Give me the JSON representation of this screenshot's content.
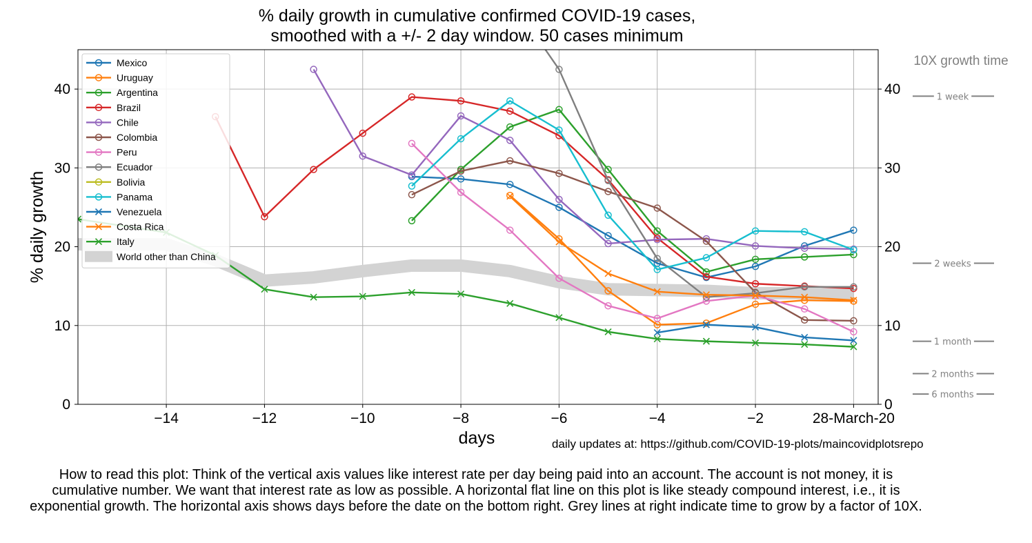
{
  "title_line1": "% daily growth in cumulative confirmed COVID-19 cases,",
  "title_line2": "smoothed with a +/- 2 day window. 50 cases minimum",
  "updates_text": "daily updates at: https://github.com/COVID-19-plots/maincovidplotsrepo",
  "footer_text": "How to read this plot: Think of the vertical axis values like interest rate per day being paid into an account. The account is not money, it is cumulative number. We want that interest rate as low as possible. A horizontal flat line on this plot is like steady compound interest, i.e., it is exponential growth. The horizontal axis shows days before the date on the bottom right. Grey lines at right indicate time to grow by a factor of 10X.",
  "chart_data": {
    "type": "line",
    "xlabel": "days",
    "ylabel": "% daily growth",
    "xlim": [
      -15.8,
      0.5
    ],
    "ylim": [
      0,
      45
    ],
    "x_ticks": [
      -14,
      -12,
      -10,
      -8,
      -6,
      -4,
      -2,
      0
    ],
    "x_tick_labels": [
      "−14",
      "−12",
      "−10",
      "−8",
      "−6",
      "−4",
      "−2",
      "28-March-20"
    ],
    "y_ticks": [
      0,
      10,
      20,
      30,
      40
    ],
    "y_tick_labels": [
      "0",
      "10",
      "20",
      "30",
      "40"
    ],
    "grid": true,
    "legend_position": "top-left",
    "right_axis_title": "10X growth time",
    "right_markers": [
      {
        "label": "1 week",
        "y": 39.1
      },
      {
        "label": "2 weeks",
        "y": 17.9
      },
      {
        "label": "1 month",
        "y": 8.0
      },
      {
        "label": "2 months",
        "y": 3.9
      },
      {
        "label": "6 months",
        "y": 1.3
      }
    ],
    "band": {
      "name": "World other than China",
      "color": "#d3d3d3",
      "points": [
        [
          -15.8,
          20.3
        ],
        [
          -14,
          20.3
        ],
        [
          -13,
          18.3
        ],
        [
          -12,
          15.7
        ],
        [
          -11,
          16.1
        ],
        [
          -10,
          16.9
        ],
        [
          -9,
          17.6
        ],
        [
          -8,
          17.6
        ],
        [
          -7,
          16.9
        ],
        [
          -6,
          15.5
        ],
        [
          -5,
          14.6
        ],
        [
          -4,
          14.5
        ],
        [
          -3,
          14.4
        ],
        [
          -2,
          14.1
        ],
        [
          -1,
          14.1
        ],
        [
          0,
          14.0
        ]
      ]
    },
    "series": [
      {
        "name": "Mexico",
        "color": "#1f77b4",
        "marker": "circle",
        "points": [
          [
            -9,
            28.9
          ],
          [
            -8,
            28.6
          ],
          [
            -7,
            27.9
          ],
          [
            -6,
            25.0
          ],
          [
            -5,
            21.4
          ],
          [
            -4,
            17.9
          ],
          [
            -3,
            16.1
          ],
          [
            -2,
            17.5
          ],
          [
            -1,
            20.1
          ],
          [
            0,
            22.1
          ]
        ]
      },
      {
        "name": "Uruguay",
        "color": "#ff7f0e",
        "marker": "circle",
        "points": [
          [
            -7,
            26.5
          ],
          [
            -6,
            21.0
          ],
          [
            -5,
            14.4
          ],
          [
            -4,
            10.1
          ],
          [
            -3,
            10.3
          ],
          [
            -2,
            12.7
          ],
          [
            -1,
            13.2
          ],
          [
            0,
            13.1
          ]
        ]
      },
      {
        "name": "Argentina",
        "color": "#2ca02c",
        "marker": "circle",
        "points": [
          [
            -9,
            23.3
          ],
          [
            -8,
            29.8
          ],
          [
            -7,
            35.2
          ],
          [
            -6,
            37.4
          ],
          [
            -5,
            29.8
          ],
          [
            -4,
            22.0
          ],
          [
            -3,
            16.8
          ],
          [
            -2,
            18.4
          ],
          [
            -1,
            18.7
          ],
          [
            0,
            19.0
          ]
        ]
      },
      {
        "name": "Brazil",
        "color": "#d62728",
        "marker": "circle",
        "points": [
          [
            -13,
            36.5
          ],
          [
            -12,
            23.8
          ],
          [
            -11,
            29.8
          ],
          [
            -10,
            34.4
          ],
          [
            -9,
            39.0
          ],
          [
            -8,
            38.5
          ],
          [
            -7,
            37.2
          ],
          [
            -6,
            34.1
          ],
          [
            -5,
            28.5
          ],
          [
            -4,
            21.1
          ],
          [
            -3,
            16.2
          ],
          [
            -2,
            15.3
          ],
          [
            -1,
            15.0
          ],
          [
            0,
            14.7
          ]
        ]
      },
      {
        "name": "Chile",
        "color": "#9467bd",
        "marker": "circle",
        "points": [
          [
            -11,
            42.5
          ],
          [
            -10,
            31.5
          ],
          [
            -9,
            29.1
          ],
          [
            -8,
            36.6
          ],
          [
            -7,
            33.5
          ],
          [
            -6,
            26.0
          ],
          [
            -5,
            20.4
          ],
          [
            -4,
            20.9
          ],
          [
            -3,
            21.0
          ],
          [
            -2,
            20.1
          ],
          [
            -1,
            19.8
          ],
          [
            0,
            19.7
          ]
        ]
      },
      {
        "name": "Colombia",
        "color": "#8c564b",
        "marker": "circle",
        "points": [
          [
            -9,
            26.6
          ],
          [
            -8,
            29.6
          ],
          [
            -7,
            30.9
          ],
          [
            -6,
            29.3
          ],
          [
            -5,
            27.0
          ],
          [
            -4,
            24.9
          ],
          [
            -3,
            20.7
          ],
          [
            -2,
            14.2
          ],
          [
            -1,
            10.7
          ],
          [
            0,
            10.6
          ]
        ]
      },
      {
        "name": "Peru",
        "color": "#e377c2",
        "marker": "circle",
        "points": [
          [
            -9,
            33.1
          ],
          [
            -8,
            26.9
          ],
          [
            -7,
            22.1
          ],
          [
            -6,
            16.0
          ],
          [
            -5,
            12.5
          ],
          [
            -4,
            10.9
          ],
          [
            -3,
            13.1
          ],
          [
            -2,
            13.8
          ],
          [
            -1,
            12.1
          ],
          [
            0,
            9.2
          ]
        ]
      },
      {
        "name": "Ecuador",
        "color": "#7f7f7f",
        "marker": "circle",
        "points": [
          [
            -6.5,
            47.0
          ],
          [
            -6,
            42.5
          ],
          [
            -5,
            28.4
          ],
          [
            -4,
            18.5
          ],
          [
            -3,
            13.6
          ],
          [
            -2,
            14.1
          ],
          [
            -1,
            14.9
          ],
          [
            0,
            14.9
          ]
        ]
      },
      {
        "name": "Bolivia",
        "color": "#bcbd22",
        "marker": "circle",
        "points": []
      },
      {
        "name": "Panama",
        "color": "#17becf",
        "marker": "circle",
        "points": [
          [
            -9,
            27.7
          ],
          [
            -8,
            33.7
          ],
          [
            -7,
            38.5
          ],
          [
            -6,
            34.8
          ],
          [
            -5,
            24.0
          ],
          [
            -4,
            17.1
          ],
          [
            -3,
            18.6
          ],
          [
            -2,
            22.0
          ],
          [
            -1,
            21.9
          ],
          [
            0,
            19.6
          ]
        ]
      },
      {
        "name": "Venezuela",
        "color": "#1f77b4",
        "marker": "x",
        "points": [
          [
            -4,
            9.1
          ],
          [
            -3,
            10.1
          ],
          [
            -2,
            9.8
          ],
          [
            -1,
            8.5
          ],
          [
            0,
            8.1
          ]
        ]
      },
      {
        "name": "Costa Rica",
        "color": "#ff7f0e",
        "marker": "x",
        "points": [
          [
            -7,
            26.4
          ],
          [
            -6,
            20.6
          ],
          [
            -5,
            16.6
          ],
          [
            -4,
            14.3
          ],
          [
            -3,
            13.9
          ],
          [
            -2,
            13.8
          ],
          [
            -1,
            13.6
          ],
          [
            0,
            13.2
          ]
        ]
      },
      {
        "name": "Italy",
        "color": "#2ca02c",
        "marker": "x",
        "points": [
          [
            -15.8,
            23.5
          ],
          [
            -14,
            21.8
          ],
          [
            -13,
            18.9
          ],
          [
            -12,
            14.6
          ],
          [
            -11,
            13.6
          ],
          [
            -10,
            13.7
          ],
          [
            -9,
            14.2
          ],
          [
            -8,
            14.0
          ],
          [
            -7,
            12.8
          ],
          [
            -6,
            11.0
          ],
          [
            -5,
            9.2
          ],
          [
            -4,
            8.3
          ],
          [
            -3,
            8.0
          ],
          [
            -2,
            7.8
          ],
          [
            -1,
            7.6
          ],
          [
            0,
            7.3
          ]
        ]
      }
    ]
  }
}
